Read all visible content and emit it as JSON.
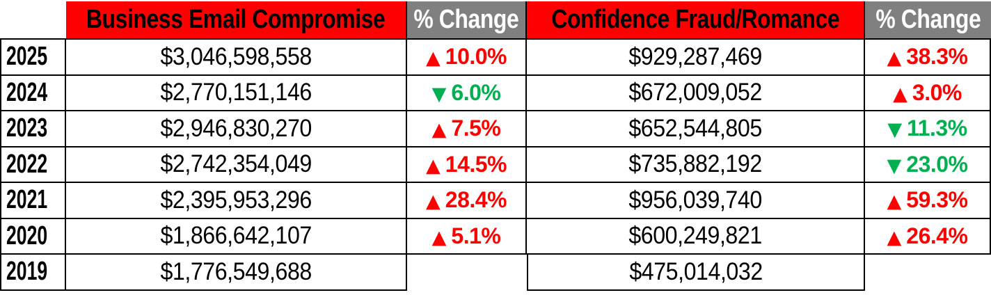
{
  "colors": {
    "header_red": "#FF0000",
    "header_gray": "#808080",
    "increase": "#FF0000",
    "decrease": "#00B050",
    "border": "#000000",
    "text": "#000000",
    "header_text_on_gray": "#FFFFFF"
  },
  "table": {
    "header": {
      "corner": "",
      "bec": "Business Email Compromise",
      "bec_change": "% Change",
      "cfr": "Confidence Fraud/Romance",
      "cfr_change": "% Change"
    },
    "rows": [
      {
        "year": "2025",
        "bec_loss": "$3,046,598,558",
        "bec_change": {
          "direction": "up",
          "arrow": "▲",
          "value": "10.0%"
        },
        "cfr_loss": "$929,287,469",
        "cfr_change": {
          "direction": "up",
          "arrow": "▲",
          "value": "38.3%"
        }
      },
      {
        "year": "2024",
        "bec_loss": "$2,770,151,146",
        "bec_change": {
          "direction": "down",
          "arrow": "▼",
          "value": "6.0%"
        },
        "cfr_loss": "$672,009,052",
        "cfr_change": {
          "direction": "up",
          "arrow": "▲",
          "value": "3.0%"
        }
      },
      {
        "year": "2023",
        "bec_loss": "$2,946,830,270",
        "bec_change": {
          "direction": "up",
          "arrow": "▲",
          "value": "7.5%"
        },
        "cfr_loss": "$652,544,805",
        "cfr_change": {
          "direction": "down",
          "arrow": "▼",
          "value": "11.3%"
        }
      },
      {
        "year": "2022",
        "bec_loss": "$2,742,354,049",
        "bec_change": {
          "direction": "up",
          "arrow": "▲",
          "value": "14.5%"
        },
        "cfr_loss": "$735,882,192",
        "cfr_change": {
          "direction": "down",
          "arrow": "▼",
          "value": "23.0%"
        }
      },
      {
        "year": "2021",
        "bec_loss": "$2,395,953,296",
        "bec_change": {
          "direction": "up",
          "arrow": "▲",
          "value": "28.4%"
        },
        "cfr_loss": "$956,039,740",
        "cfr_change": {
          "direction": "up",
          "arrow": "▲",
          "value": "59.3%"
        }
      },
      {
        "year": "2020",
        "bec_loss": "$1,866,642,107",
        "bec_change": {
          "direction": "up",
          "arrow": "▲",
          "value": "5.1%"
        },
        "cfr_loss": "$600,249,821",
        "cfr_change": {
          "direction": "up",
          "arrow": "▲",
          "value": "26.4%"
        }
      },
      {
        "year": "2019",
        "bec_loss": "$1,776,549,688",
        "bec_change": null,
        "cfr_loss": "$475,014,032",
        "cfr_change": null
      }
    ]
  },
  "chart_data": {
    "type": "table",
    "columns": [
      "",
      "Business Email Compromise",
      "% Change",
      "Confidence Fraud/Romance",
      "% Change"
    ],
    "rows": [
      [
        "2025",
        "$3,046,598,558",
        "▲10.0%",
        "$929,287,469",
        "▲38.3%"
      ],
      [
        "2024",
        "$2,770,151,146",
        "▼6.0%",
        "$672,009,052",
        "▲3.0%"
      ],
      [
        "2023",
        "$2,946,830,270",
        "▲7.5%",
        "$652,544,805",
        "▼11.3%"
      ],
      [
        "2022",
        "$2,742,354,049",
        "▲14.5%",
        "$735,882,192",
        "▼23.0%"
      ],
      [
        "2021",
        "$2,395,953,296",
        "▲28.4%",
        "$956,039,740",
        "▲59.3%"
      ],
      [
        "2020",
        "$1,866,642,107",
        "▲5.1%",
        "$600,249,821",
        "▲26.4%"
      ],
      [
        "2019",
        "$1,776,549,688",
        "",
        "$475,014,032",
        ""
      ]
    ],
    "series": [
      {
        "name": "Business Email Compromise",
        "x": [
          2025,
          2024,
          2023,
          2022,
          2021,
          2020,
          2019
        ],
        "values": [
          3046598558,
          2770151146,
          2946830270,
          2742354049,
          2395953296,
          1866642107,
          1776549688
        ],
        "pct_change": [
          10.0,
          -6.0,
          7.5,
          14.5,
          28.4,
          5.1,
          null
        ]
      },
      {
        "name": "Confidence Fraud/Romance",
        "x": [
          2025,
          2024,
          2023,
          2022,
          2021,
          2020,
          2019
        ],
        "values": [
          929287469,
          672009052,
          652544805,
          735882192,
          956039740,
          600249821,
          475014032
        ],
        "pct_change": [
          38.3,
          3.0,
          -11.3,
          -23.0,
          59.3,
          26.4,
          null
        ]
      }
    ],
    "legend_position": "none",
    "grid": true
  }
}
